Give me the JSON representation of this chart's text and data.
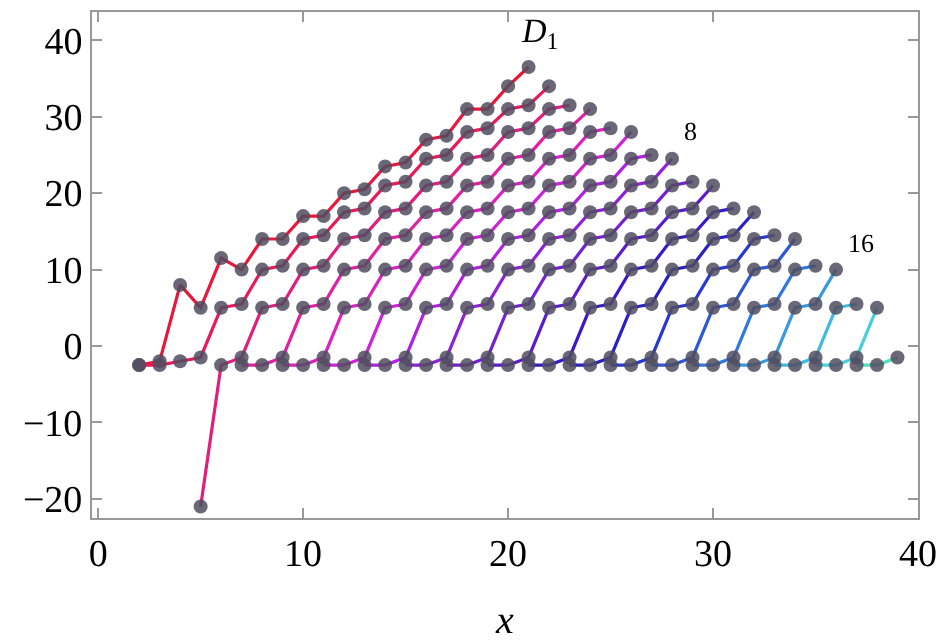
{
  "chart_data": {
    "type": "line",
    "xlabel": "x",
    "xlim": [
      -0.3,
      40
    ],
    "ylim": [
      -22.5,
      43.7
    ],
    "xticks": [
      0,
      10,
      20,
      30,
      40
    ],
    "yticks": [
      -20,
      -10,
      0,
      10,
      20,
      30,
      40
    ],
    "marker": "circle",
    "line_style": "solid",
    "annotations": [
      {
        "text": "D$_{1}$",
        "x": 21,
        "y": 36.5
      },
      {
        "text": "8",
        "x": 28,
        "y": 24.5
      },
      {
        "text": "16",
        "x": 36,
        "y": 10
      }
    ],
    "series": [
      {
        "color": "#e8173b",
        "x": [
          2,
          3,
          4,
          5,
          6,
          7,
          8,
          9,
          10,
          11,
          12,
          13,
          14,
          15,
          16,
          17,
          18,
          19,
          20,
          21
        ],
        "values": [
          -2.5,
          -2,
          8,
          5,
          11.5,
          10,
          14,
          14,
          17,
          17,
          20,
          20.5,
          23.5,
          24,
          27,
          27.5,
          31,
          31,
          34,
          36.5
        ]
      },
      {
        "color": "#e81a5a",
        "x": [
          2,
          3,
          4,
          5,
          6,
          7,
          8,
          9,
          10,
          11,
          12,
          13,
          14,
          15,
          16,
          17,
          18,
          19,
          20,
          21,
          22
        ],
        "values": [
          -2.5,
          -2.5,
          -2,
          -1.5,
          5,
          5.5,
          10,
          10.5,
          14,
          14.5,
          17.5,
          18,
          21,
          21.5,
          24.5,
          25,
          28,
          28.5,
          31,
          31.5,
          34
        ]
      },
      {
        "color": "#e01e7e",
        "x": [
          5,
          6,
          7,
          8,
          9,
          10,
          11,
          12,
          13,
          14,
          15,
          16,
          17,
          18,
          19,
          20,
          21,
          22,
          23
        ],
        "values": [
          -21,
          -2.5,
          -1.5,
          5,
          5.5,
          10,
          10.5,
          14,
          14.5,
          17.5,
          18,
          21,
          21.5,
          24.5,
          25,
          28,
          28.5,
          31,
          31.5
        ]
      },
      {
        "color": "#e020a0",
        "x": [
          7,
          8,
          9,
          10,
          11,
          12,
          13,
          14,
          15,
          16,
          17,
          18,
          19,
          20,
          21,
          22,
          23,
          24
        ],
        "values": [
          -2.5,
          -2.5,
          -1.5,
          5,
          5.5,
          10,
          10.5,
          14,
          14.5,
          17.5,
          18,
          21,
          21.5,
          24.5,
          25,
          28,
          28.5,
          31
        ]
      },
      {
        "color": "#d822c0",
        "x": [
          9,
          10,
          11,
          12,
          13,
          14,
          15,
          16,
          17,
          18,
          19,
          20,
          21,
          22,
          23,
          24,
          25
        ],
        "values": [
          -2.5,
          -2.5,
          -1.5,
          5,
          5.5,
          10,
          10.5,
          14,
          14.5,
          17.5,
          18,
          21,
          21.5,
          24.5,
          25,
          28,
          28.5
        ]
      },
      {
        "color": "#cc22d8",
        "x": [
          11,
          12,
          13,
          14,
          15,
          16,
          17,
          18,
          19,
          20,
          21,
          22,
          23,
          24,
          25,
          26
        ],
        "values": [
          -2.5,
          -2.5,
          -1.5,
          5,
          5.5,
          10,
          10.5,
          14,
          14.5,
          17.5,
          18,
          21,
          21.5,
          24.5,
          25,
          28
        ]
      },
      {
        "color": "#b020e0",
        "x": [
          13,
          14,
          15,
          16,
          17,
          18,
          19,
          20,
          21,
          22,
          23,
          24,
          25,
          26,
          27
        ],
        "values": [
          -2.5,
          -2.5,
          -1.5,
          5,
          5.5,
          10,
          10.5,
          14,
          14.5,
          17.5,
          18,
          21,
          21.5,
          24.5,
          25
        ]
      },
      {
        "color": "#9020d8",
        "x": [
          15,
          16,
          17,
          18,
          19,
          20,
          21,
          22,
          23,
          24,
          25,
          26,
          27,
          28
        ],
        "values": [
          -2.5,
          -2.5,
          -1.5,
          5,
          5.5,
          10,
          10.5,
          14,
          14.5,
          17.5,
          18,
          21,
          21.5,
          24.5
        ]
      },
      {
        "color": "#7420d0",
        "x": [
          17,
          18,
          19,
          20,
          21,
          22,
          23,
          24,
          25,
          26,
          27,
          28,
          29
        ],
        "values": [
          -2.5,
          -2.5,
          -1.5,
          5,
          5.5,
          10,
          10.5,
          14,
          14.5,
          17.5,
          18,
          21,
          21.5
        ]
      },
      {
        "color": "#5a1ccc",
        "x": [
          19,
          20,
          21,
          22,
          23,
          24,
          25,
          26,
          27,
          28,
          29,
          30
        ],
        "values": [
          -2.5,
          -2.5,
          -1.5,
          5,
          5.5,
          10,
          10.5,
          14,
          14.5,
          17.5,
          18,
          21
        ]
      },
      {
        "color": "#3c18c8",
        "x": [
          21,
          22,
          23,
          24,
          25,
          26,
          27,
          28,
          29,
          30,
          31
        ],
        "values": [
          -2.5,
          -2.5,
          -1.5,
          5,
          5.5,
          10,
          10.5,
          14,
          14.5,
          17.5,
          18
        ]
      },
      {
        "color": "#2a20c8",
        "x": [
          23,
          24,
          25,
          26,
          27,
          28,
          29,
          30,
          31,
          32
        ],
        "values": [
          -2.5,
          -2.5,
          -1.5,
          5,
          5.5,
          10,
          10.5,
          14,
          14.5,
          17.5
        ]
      },
      {
        "color": "#2838d0",
        "x": [
          25,
          26,
          27,
          28,
          29,
          30,
          31,
          32,
          33
        ],
        "values": [
          -2.5,
          -2.5,
          -1.5,
          5,
          5.5,
          10,
          10.5,
          14,
          14.5
        ]
      },
      {
        "color": "#2c58d8",
        "x": [
          27,
          28,
          29,
          30,
          31,
          32,
          33,
          34
        ],
        "values": [
          -2.5,
          -2.5,
          -1.5,
          5,
          5.5,
          10,
          10.5,
          14
        ]
      },
      {
        "color": "#3078e0",
        "x": [
          29,
          30,
          31,
          32,
          33,
          34,
          35
        ],
        "values": [
          -2.5,
          -2.5,
          -1.5,
          5,
          5.5,
          10,
          10.5
        ]
      },
      {
        "color": "#3898e0",
        "x": [
          31,
          32,
          33,
          34,
          35,
          36
        ],
        "values": [
          -2.5,
          -2.5,
          -1.5,
          5,
          5.5,
          10
        ]
      },
      {
        "color": "#40b8e0",
        "x": [
          33,
          34,
          35,
          36,
          37
        ],
        "values": [
          -2.5,
          -2.5,
          -1.5,
          5,
          5.5
        ]
      },
      {
        "color": "#48d0d8",
        "x": [
          35,
          36,
          37,
          38
        ],
        "values": [
          -2.5,
          -2.5,
          -1.5,
          5
        ]
      },
      {
        "color": "#50e0c0",
        "x": [
          37,
          38,
          39
        ],
        "values": [
          -2.5,
          -2.5,
          -1.5
        ]
      }
    ]
  }
}
